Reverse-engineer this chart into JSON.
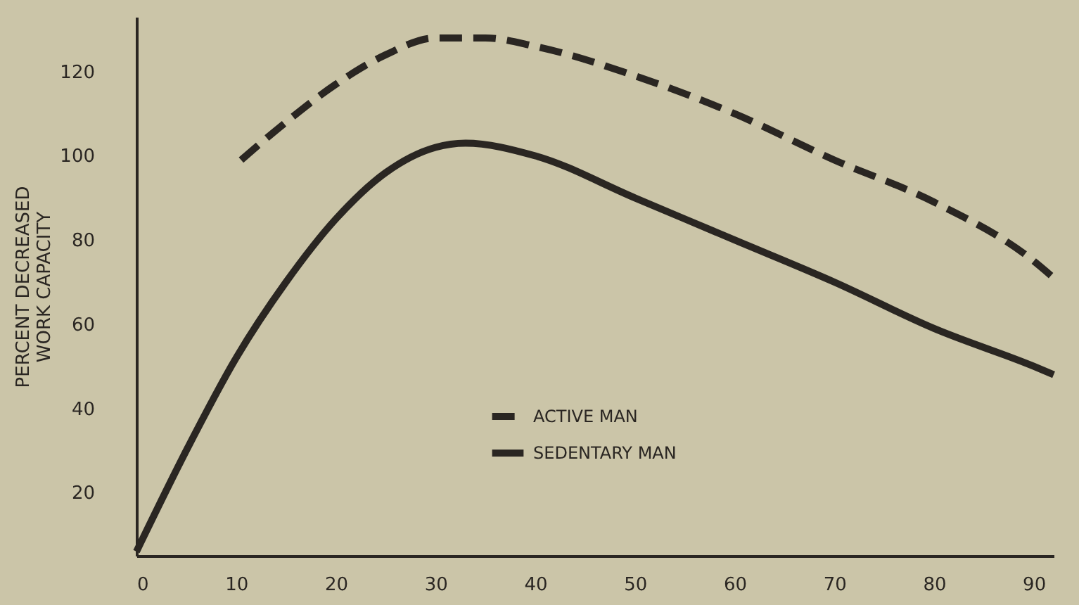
{
  "chart_data": {
    "type": "line",
    "ylabel": "PERCENT DECREASED\nWORK CAPACITY",
    "xlim": [
      0,
      92
    ],
    "xticks": [
      0,
      10,
      20,
      30,
      40,
      50,
      60,
      70,
      80,
      90
    ],
    "ylim": [
      5,
      133
    ],
    "yticks": [
      20,
      40,
      60,
      80,
      100,
      120
    ],
    "grid": false,
    "legend": "bottom",
    "marker": "none",
    "series": [
      {
        "name": "ACTIVE MAN",
        "color": "#2a2622",
        "line_style": "dashed",
        "x": [
          10.5,
          15,
          20,
          25,
          30,
          35,
          40,
          50,
          60,
          70,
          80,
          90,
          92
        ],
        "values": [
          99,
          108,
          117,
          124,
          128,
          128,
          126,
          119,
          110,
          99,
          89,
          75,
          71
        ]
      },
      {
        "name": "SEDENTARY MAN",
        "color": "#2a2622",
        "line_style": "solid",
        "x": [
          0,
          5,
          10,
          15,
          20,
          25,
          30,
          33,
          40,
          50,
          60,
          70,
          80,
          90,
          92
        ],
        "values": [
          6,
          30,
          52,
          70,
          85,
          96,
          102,
          103,
          100,
          90,
          80,
          70,
          59,
          50,
          48
        ]
      }
    ]
  }
}
